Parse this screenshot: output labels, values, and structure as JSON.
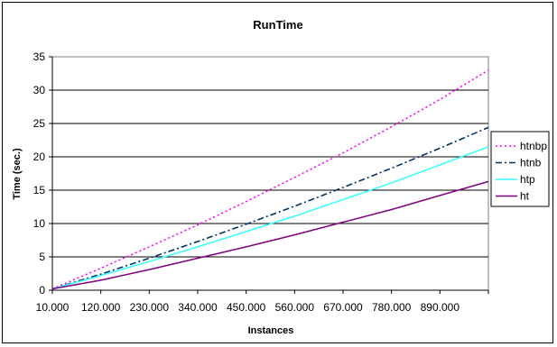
{
  "chart_data": {
    "type": "line",
    "title": "RunTime",
    "xlabel": "Instances",
    "ylabel": "Time (sec.)",
    "ylim": [
      0,
      35
    ],
    "yticks": [
      "0",
      "5",
      "10",
      "15",
      "20",
      "25",
      "30",
      "35"
    ],
    "x": [
      10000,
      120000,
      230000,
      340000,
      450000,
      560000,
      670000,
      780000,
      890000,
      1000000
    ],
    "xtick_labels": [
      "10.000",
      "120.000",
      "230.000",
      "340.000",
      "450.000",
      "560.000",
      "670.000",
      "780.000",
      "890.000"
    ],
    "grid": true,
    "legend_position": "right",
    "series": [
      {
        "name": "htnbp",
        "color": "#ff00ff",
        "dash": "dotted",
        "values": [
          0.2,
          3.3,
          6.5,
          9.8,
          13.3,
          16.9,
          20.6,
          24.5,
          28.6,
          33.0
        ]
      },
      {
        "name": "htnb",
        "color": "#003366",
        "dash": "dashdot",
        "values": [
          0.2,
          2.4,
          4.8,
          7.3,
          9.9,
          12.6,
          15.4,
          18.3,
          21.3,
          24.4
        ]
      },
      {
        "name": "htp",
        "color": "#33ffff",
        "dash": "solid",
        "values": [
          0.2,
          2.2,
          4.3,
          6.5,
          8.8,
          11.1,
          13.6,
          16.1,
          18.8,
          21.5
        ]
      },
      {
        "name": "ht",
        "color": "#800080",
        "dash": "solid",
        "values": [
          0.2,
          1.5,
          3.1,
          4.8,
          6.5,
          8.3,
          10.2,
          12.1,
          14.2,
          16.3
        ]
      }
    ]
  }
}
